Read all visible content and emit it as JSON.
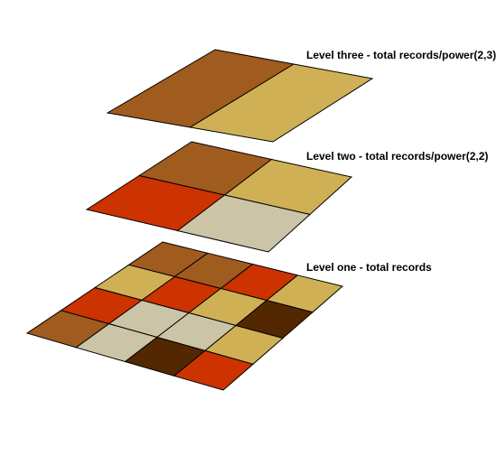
{
  "palette": {
    "medium_brown": "#a05b1e",
    "tan": "#cfb055",
    "red_orange": "#cc3300",
    "beige": "#cbc4a6",
    "dark_brown": "#532800",
    "outline": "#000000"
  },
  "levels": [
    {
      "id": "level-three",
      "label": "Level three - total records/power(2,3)",
      "grid_rows": 1,
      "grid_cols": 2,
      "cells": [
        [
          "medium_brown",
          "tan"
        ]
      ]
    },
    {
      "id": "level-two",
      "label": "Level two - total records/power(2,2)",
      "grid_rows": 2,
      "grid_cols": 2,
      "cells": [
        [
          "medium_brown",
          "tan"
        ],
        [
          "red_orange",
          "beige"
        ]
      ]
    },
    {
      "id": "level-one",
      "label": "Level one - total records",
      "grid_rows": 4,
      "grid_cols": 4,
      "cells": [
        [
          "medium_brown",
          "medium_brown",
          "red_orange",
          "tan"
        ],
        [
          "tan",
          "red_orange",
          "tan",
          "dark_brown"
        ],
        [
          "red_orange",
          "beige",
          "beige",
          "tan"
        ],
        [
          "medium_brown",
          "beige",
          "dark_brown",
          "red_orange"
        ]
      ]
    }
  ]
}
